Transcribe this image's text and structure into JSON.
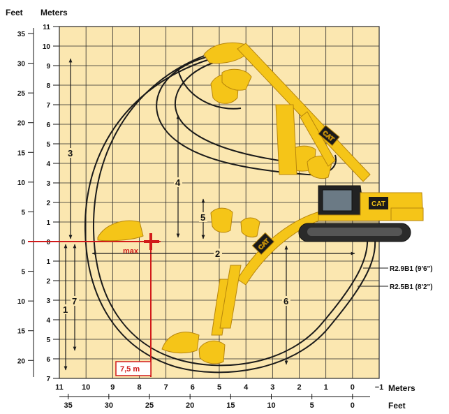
{
  "axes": {
    "feet_left_title": "Feet",
    "meters_left_title": "Meters",
    "meters_bottom_title": "Meters",
    "feet_bottom_title": "Feet",
    "feet_left_ticks": [
      "35",
      "30",
      "25",
      "20",
      "15",
      "10",
      "5",
      "0",
      "5",
      "10",
      "15",
      "20"
    ],
    "meters_left_ticks": [
      "11",
      "10",
      "9",
      "8",
      "7",
      "6",
      "5",
      "4",
      "3",
      "2",
      "1",
      "0",
      "1",
      "2",
      "3",
      "4",
      "5",
      "6",
      "7"
    ],
    "meters_bottom_ticks": [
      "11",
      "10",
      "9",
      "8",
      "7",
      "6",
      "5",
      "4",
      "3",
      "2",
      "1",
      "0",
      "−1"
    ],
    "feet_bottom_ticks": [
      "35",
      "30",
      "25",
      "20",
      "15",
      "10",
      "5",
      "0"
    ]
  },
  "dimensions": {
    "d1": "1",
    "d2": "2",
    "d3": "3",
    "d4": "4",
    "d5": "5",
    "d6": "6",
    "d7": "7"
  },
  "annotations": {
    "max_label": "max",
    "reach_label": "7,5 m"
  },
  "stick_labels": {
    "long": "R2.9B1 (9'6\")",
    "short": "R2.5B1 (8'2\")"
  },
  "brand": {
    "logo_text": "CAT"
  },
  "colors": {
    "grid_fill": "#fbe7b0",
    "grid_line": "#2a2a2a",
    "machine_yellow": "#f5c518",
    "machine_dark": "#1a1a1a",
    "highlight_red": "#d11a1a"
  }
}
